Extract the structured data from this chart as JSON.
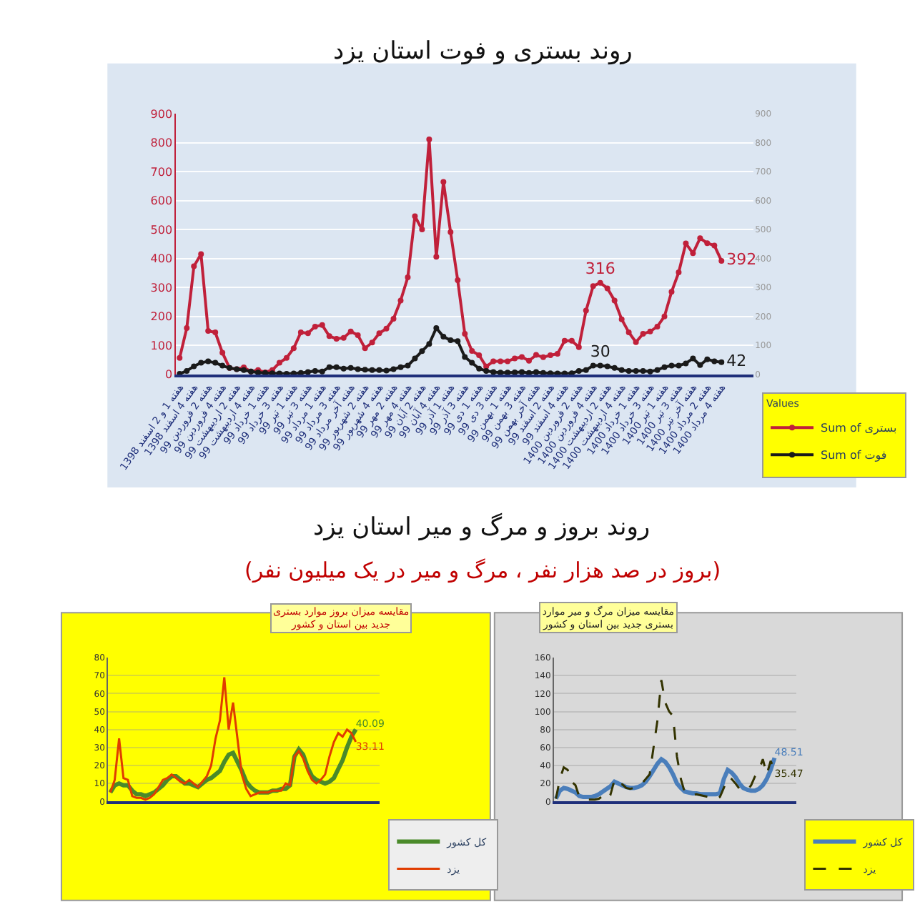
{
  "chart_data": [
    {
      "type": "line",
      "title": "روند بستری و فوت استان یزد",
      "legend_title": "Values",
      "legend": "bottom right",
      "grid": "y",
      "marker": "circle",
      "line_style": "solid",
      "categories": [
        "هفته 1 و 2 اسفند 1398",
        null,
        "هفته 4 اسفند 1398",
        null,
        "هفته 2 فروردین 99",
        null,
        "هفته 4 فروردین 99",
        null,
        "هفته 2 اردیبهشت 99",
        null,
        "هفته 4 اردیبهشت 99",
        null,
        "هفته 1 خرداد 99",
        null,
        "هفته 3 خرداد 99",
        null,
        "هفته 1 تیر 99",
        null,
        "هفته 3 تیر 99",
        null,
        "هفته 1 مرداد 99",
        null,
        "هفته 3 مرداد 99",
        null,
        "هفته آخر مرداد 99",
        null,
        "هفته 2 شهریور 99",
        null,
        "هفته 4 شهریور 99",
        null,
        "هفته 2 مهر 99",
        null,
        "هفته 4 مهر 99",
        null,
        "هفته 2 آبان 99",
        null,
        "هفته 4 آبان 99",
        null,
        "هفته 1 آذر 99",
        null,
        "هفته 3 آذر 99",
        null,
        "هفته 1 دی 99",
        null,
        "هفته 3 دی 99",
        null,
        "هفته 1 بهمن 99",
        null,
        "هفته 3 بهمن 99",
        null,
        "هفته آخر بهمن 99",
        null,
        "هفته 2 اسفند 99",
        null,
        "هفته 4 اسفند 99",
        null,
        "هفته 2 فروردین 1400",
        null,
        "هفته 4 فروردین 1400",
        null,
        "هفته 2 اردیبهشت 1400",
        null,
        "هفته 4 اردیبهشت 1400",
        null,
        "هفته 1 خرداد 1400",
        null,
        "هفته 3 خرداد 1400",
        null,
        "هفته 1 تیر 1400",
        null,
        "هفته 3 تیر 1400",
        null,
        "هفته آخر تیر 1400",
        null,
        "هفته 2 مرداد 1400",
        null,
        "هفته 4 مرداد 1400"
      ],
      "ylim": [
        0,
        900
      ],
      "yticks": [
        0,
        100,
        200,
        300,
        400,
        500,
        600,
        700,
        800,
        900
      ],
      "y2lim": [
        0,
        900
      ],
      "y2ticks": [
        0,
        100,
        200,
        300,
        400,
        500,
        600,
        700,
        800,
        900
      ],
      "series": [
        {
          "name": "Sum of بستری",
          "color": "#c0203a",
          "values": [
            57,
            160,
            373,
            415,
            150,
            145,
            75,
            22,
            18,
            24,
            10,
            15,
            7,
            15,
            40,
            57,
            90,
            145,
            142,
            165,
            170,
            132,
            123,
            126,
            148,
            135,
            90,
            110,
            142,
            158,
            192,
            255,
            335,
            546,
            500,
            811,
            406,
            664,
            491,
            325,
            140,
            81,
            66,
            27,
            45,
            45,
            45,
            55,
            60,
            47,
            67,
            59,
            66,
            71,
            116,
            116,
            94,
            220,
            305,
            316,
            297,
            255,
            190,
            145,
            111,
            140,
            148,
            165,
            200,
            285,
            352,
            452,
            418,
            470,
            453,
            445,
            392
          ],
          "value_labels": [
            null,
            null,
            null,
            null,
            null,
            null,
            null,
            null,
            null,
            null,
            null,
            null,
            null,
            null,
            null,
            null,
            null,
            null,
            null,
            null,
            null,
            null,
            null,
            null,
            null,
            null,
            null,
            null,
            null,
            null,
            null,
            null,
            null,
            null,
            null,
            null,
            null,
            null,
            null,
            null,
            null,
            null,
            null,
            null,
            null,
            null,
            null,
            null,
            null,
            null,
            null,
            null,
            null,
            null,
            null,
            null,
            null,
            null,
            null,
            "316",
            null,
            null,
            null,
            null,
            null,
            null,
            null,
            null,
            null,
            null,
            null,
            null,
            null,
            null,
            null,
            null,
            "392"
          ]
        },
        {
          "name": "Sum of فوت",
          "color": "#1a1a1a",
          "axis": "y2",
          "values": [
            2,
            12,
            28,
            40,
            45,
            40,
            30,
            22,
            18,
            15,
            10,
            6,
            5,
            4,
            3,
            2,
            3,
            5,
            8,
            12,
            10,
            25,
            25,
            20,
            22,
            18,
            16,
            15,
            15,
            13,
            18,
            25,
            30,
            55,
            80,
            105,
            160,
            130,
            118,
            115,
            60,
            40,
            20,
            12,
            8,
            6,
            6,
            7,
            8,
            5,
            8,
            5,
            4,
            3,
            3,
            4,
            12,
            15,
            30,
            30,
            28,
            22,
            15,
            12,
            12,
            12,
            10,
            15,
            25,
            30,
            30,
            38,
            55,
            32,
            52,
            45,
            42
          ],
          "value_labels": [
            null,
            null,
            null,
            null,
            null,
            null,
            null,
            null,
            null,
            null,
            null,
            null,
            null,
            null,
            null,
            null,
            null,
            null,
            null,
            null,
            null,
            null,
            null,
            null,
            null,
            null,
            null,
            null,
            null,
            null,
            null,
            null,
            null,
            null,
            null,
            null,
            null,
            null,
            null,
            null,
            null,
            null,
            null,
            null,
            null,
            null,
            null,
            null,
            null,
            null,
            null,
            null,
            null,
            null,
            null,
            null,
            null,
            null,
            null,
            "30",
            null,
            null,
            null,
            null,
            null,
            null,
            null,
            null,
            null,
            null,
            null,
            null,
            null,
            null,
            null,
            null,
            "42"
          ]
        }
      ]
    },
    {
      "type": "other",
      "title": "روند بروز و مرگ و میر استان یزد",
      "subtitle": "(بروز در صد هزار نفر ، مرگ و میر در یک میلیون نفر)"
    },
    {
      "type": "line",
      "title": "مقایسه میزان بروز موارد بستری جدید بین استان و کشور",
      "legend": "bottom right",
      "grid": "y",
      "marker": "none",
      "line_style": "solid",
      "categories": [
        null,
        null,
        null,
        null,
        null,
        null,
        null,
        null,
        null,
        null,
        null,
        null,
        null,
        null,
        null,
        null,
        null,
        null,
        null,
        null,
        null,
        null,
        null,
        null,
        null,
        null,
        null,
        null,
        null,
        null,
        null,
        null,
        null,
        null,
        null,
        null,
        null,
        null,
        null,
        null,
        null,
        null,
        null,
        null,
        null,
        null,
        null,
        null,
        null,
        null,
        null,
        null,
        null,
        null,
        null,
        null,
        null
      ],
      "ylim": [
        0,
        80
      ],
      "yticks": [
        0,
        10,
        20,
        30,
        40,
        50,
        60,
        70,
        80
      ],
      "series": [
        {
          "name": "کل کشور",
          "color": "#4a8a2a",
          "values": [
            5,
            9,
            10,
            9,
            9,
            6,
            4,
            4,
            3,
            4,
            5,
            7,
            9,
            12,
            14,
            14,
            12,
            10,
            10,
            9,
            8,
            10,
            12,
            13,
            15,
            17,
            22,
            26,
            27,
            22,
            17,
            11,
            8,
            6,
            5,
            5,
            5,
            6,
            6,
            7,
            7,
            9,
            25,
            29,
            26,
            19,
            14,
            12,
            11,
            10,
            11,
            13,
            18,
            23,
            30,
            36,
            40.09
          ],
          "value_labels": [
            null,
            null,
            null,
            null,
            null,
            null,
            null,
            null,
            null,
            null,
            null,
            null,
            null,
            null,
            null,
            null,
            null,
            null,
            null,
            null,
            null,
            null,
            null,
            null,
            null,
            null,
            null,
            null,
            null,
            null,
            null,
            null,
            null,
            null,
            null,
            null,
            null,
            null,
            null,
            null,
            null,
            null,
            null,
            null,
            null,
            null,
            null,
            null,
            null,
            null,
            null,
            null,
            null,
            null,
            null,
            null,
            "40.09"
          ]
        },
        {
          "name": "یزد",
          "color": "#e03c00",
          "values": [
            5,
            12,
            35,
            13,
            12,
            3,
            2,
            2,
            1,
            2,
            4,
            8,
            12,
            13,
            15,
            13,
            11,
            10,
            12,
            10,
            8,
            11,
            14,
            20,
            35,
            45,
            69,
            40,
            55,
            35,
            15,
            7,
            3,
            4,
            5,
            5,
            5,
            6,
            6,
            6,
            10,
            9,
            25,
            28,
            24,
            17,
            12,
            10,
            12,
            15,
            25,
            33,
            38,
            36,
            40,
            38,
            33.11
          ],
          "value_labels": [
            null,
            null,
            null,
            null,
            null,
            null,
            null,
            null,
            null,
            null,
            null,
            null,
            null,
            null,
            null,
            null,
            null,
            null,
            null,
            null,
            null,
            null,
            null,
            null,
            null,
            null,
            null,
            null,
            null,
            null,
            null,
            null,
            null,
            null,
            null,
            null,
            null,
            null,
            null,
            null,
            null,
            null,
            null,
            null,
            null,
            null,
            null,
            null,
            null,
            null,
            null,
            null,
            null,
            null,
            null,
            null,
            "33.11"
          ]
        }
      ]
    },
    {
      "type": "line",
      "title": "مقایسه میزان مرگ و میر موارد بستری جدید بین استان و کشور",
      "legend": "bottom right",
      "grid": "y",
      "marker": "none",
      "categories": [
        null,
        null,
        null,
        null,
        null,
        null,
        null,
        null,
        null,
        null,
        null,
        null,
        null,
        null,
        null,
        null,
        null,
        null,
        null,
        null,
        null,
        null,
        null,
        null,
        null,
        null,
        null,
        null,
        null,
        null,
        null,
        null,
        null,
        null,
        null,
        null,
        null,
        null,
        null,
        null,
        null,
        null,
        null,
        null,
        null,
        null,
        null,
        null,
        null,
        null,
        null,
        null,
        null,
        null,
        null,
        null,
        null
      ],
      "ylim": [
        0,
        160
      ],
      "yticks": [
        0,
        20,
        40,
        60,
        80,
        100,
        120,
        140,
        160
      ],
      "series": [
        {
          "name": "کل کشور",
          "color": "#4a7ebb",
          "line_style": "solid",
          "values": [
            3,
            12,
            15,
            14,
            12,
            10,
            6,
            5,
            5,
            5,
            6,
            8,
            11,
            14,
            17,
            22,
            20,
            18,
            16,
            15,
            15,
            16,
            18,
            22,
            28,
            35,
            42,
            47,
            44,
            38,
            30,
            20,
            15,
            11,
            10,
            9,
            9,
            8,
            8,
            8,
            8,
            8,
            9,
            25,
            35,
            32,
            27,
            20,
            15,
            13,
            12,
            12,
            14,
            18,
            25,
            35,
            48.51
          ],
          "value_labels": [
            null,
            null,
            null,
            null,
            null,
            null,
            null,
            null,
            null,
            null,
            null,
            null,
            null,
            null,
            null,
            null,
            null,
            null,
            null,
            null,
            null,
            null,
            null,
            null,
            null,
            null,
            null,
            null,
            null,
            null,
            null,
            null,
            null,
            null,
            null,
            null,
            null,
            null,
            null,
            null,
            null,
            null,
            null,
            null,
            null,
            null,
            null,
            null,
            null,
            null,
            null,
            null,
            null,
            null,
            null,
            null,
            "48.51"
          ]
        },
        {
          "name": "یزد",
          "color": "#333300",
          "line_style": "dashed",
          "values": [
            3,
            25,
            38,
            35,
            22,
            18,
            5,
            3,
            2,
            2,
            2,
            3,
            6,
            12,
            8,
            24,
            18,
            19,
            15,
            14,
            15,
            16,
            20,
            25,
            30,
            60,
            90,
            135,
            110,
            100,
            95,
            50,
            25,
            10,
            8,
            7,
            8,
            7,
            6,
            5,
            2,
            3,
            5,
            15,
            27,
            25,
            20,
            14,
            12,
            12,
            18,
            28,
            35,
            47,
            30,
            45,
            35.47
          ],
          "value_labels": [
            null,
            null,
            null,
            null,
            null,
            null,
            null,
            null,
            null,
            null,
            null,
            null,
            null,
            null,
            null,
            null,
            null,
            null,
            null,
            null,
            null,
            null,
            null,
            null,
            null,
            null,
            null,
            null,
            null,
            null,
            null,
            null,
            null,
            null,
            null,
            null,
            null,
            null,
            null,
            null,
            null,
            null,
            null,
            null,
            null,
            null,
            null,
            null,
            null,
            null,
            null,
            null,
            null,
            null,
            null,
            null,
            "35.47"
          ]
        }
      ]
    }
  ]
}
